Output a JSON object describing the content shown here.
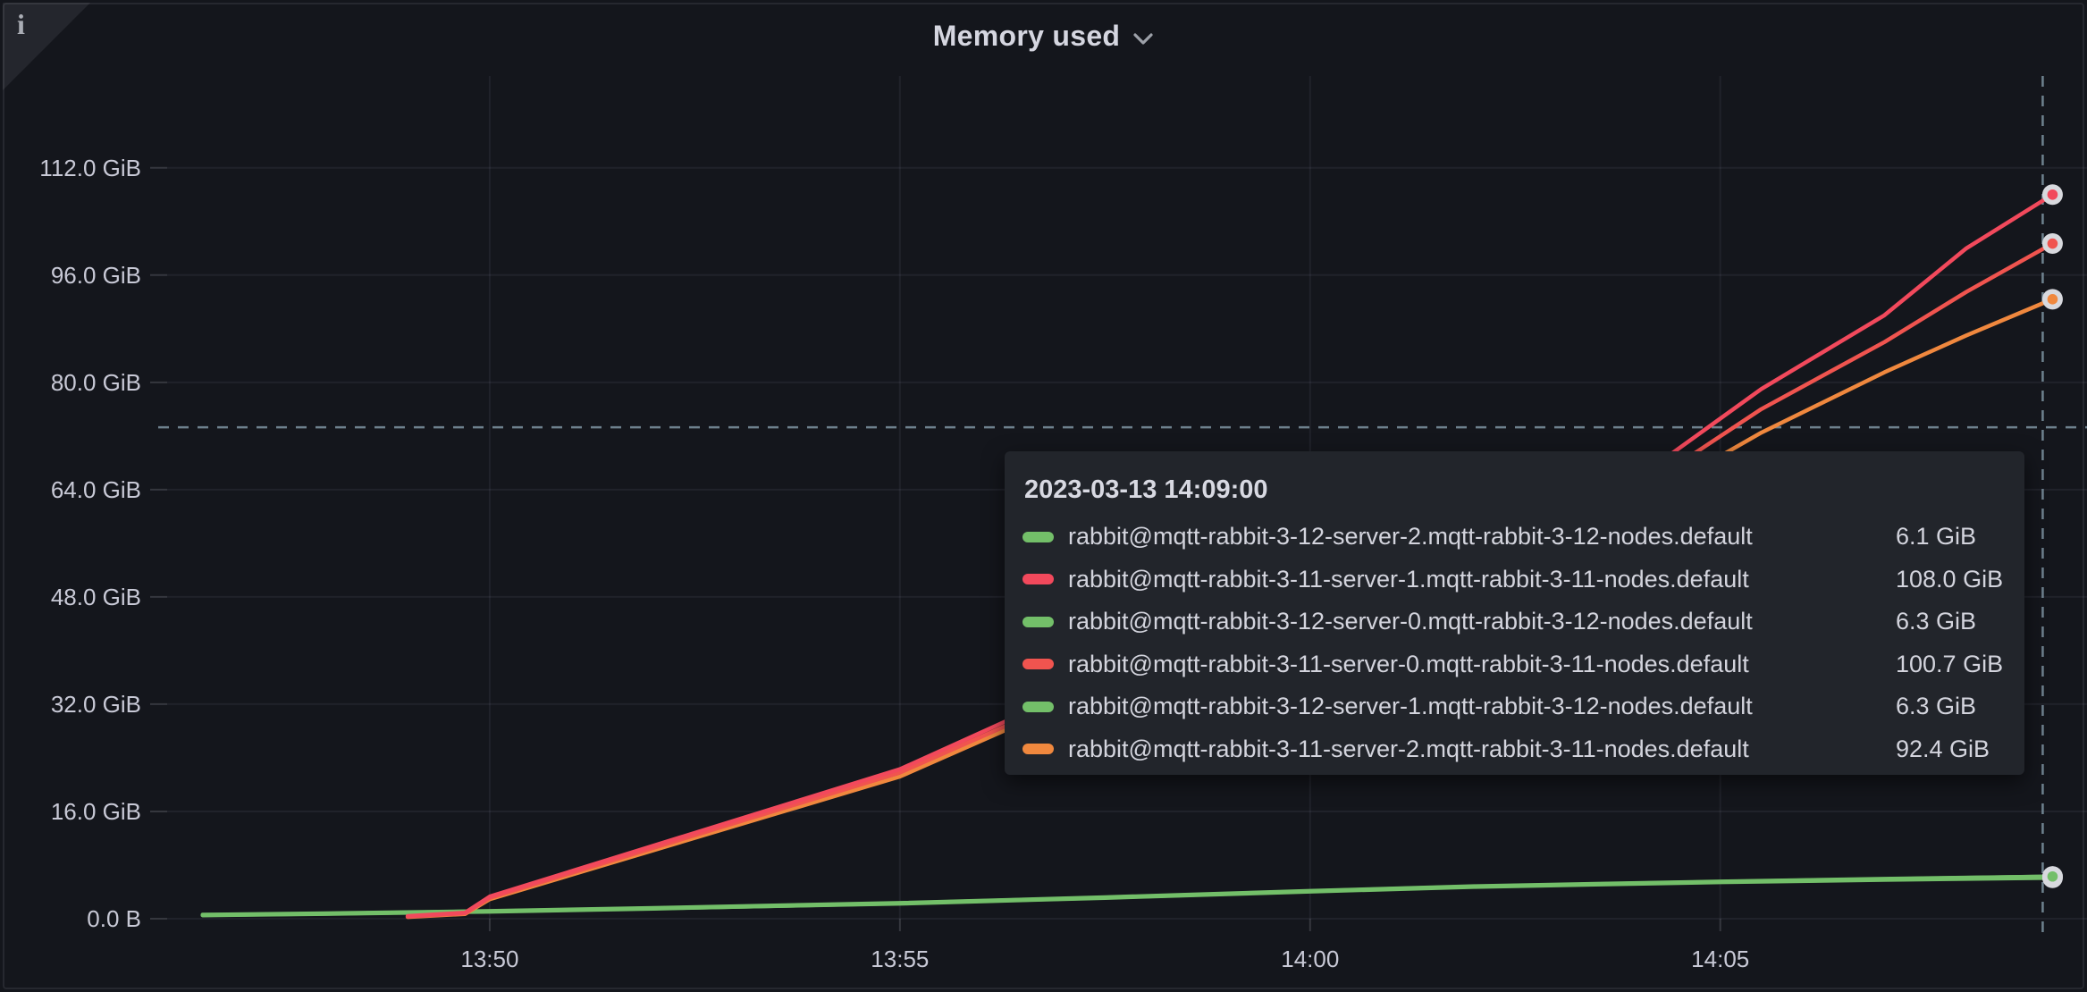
{
  "panel": {
    "title": "Memory used",
    "info_icon": "i"
  },
  "tooltip": {
    "timestamp": "2023-03-13 14:09:00"
  },
  "chart_data": {
    "type": "line",
    "title": "Memory used",
    "unit": "GiB",
    "grid": true,
    "x_axis": {
      "note": "t is minutes after 13:40",
      "lim": [
        6.068,
        29.47
      ],
      "ticks": [
        {
          "t": 10,
          "label": "13:50"
        },
        {
          "t": 15,
          "label": "13:55"
        },
        {
          "t": 20,
          "label": "14:00"
        },
        {
          "t": 25,
          "label": "14:05"
        }
      ]
    },
    "y_axis": {
      "lim": [
        0,
        125.7
      ],
      "ticks": [
        {
          "v": 0,
          "label": "0.0 B"
        },
        {
          "v": 16,
          "label": "16.0 GiB"
        },
        {
          "v": 32,
          "label": "32.0 GiB"
        },
        {
          "v": 48,
          "label": "48.0 GiB"
        },
        {
          "v": 64,
          "label": "64.0 GiB"
        },
        {
          "v": 80,
          "label": "80.0 GiB"
        },
        {
          "v": 96,
          "label": "96.0 GiB"
        },
        {
          "v": 112,
          "label": "112.0 GiB"
        }
      ]
    },
    "crosshair": {
      "t": 28.93,
      "v": 73.3
    },
    "series": [
      {
        "name": "rabbit@mqtt-rabbit-3-12-server-2.mqtt-rabbit-3-12-nodes.default",
        "value_label": "6.1 GiB",
        "value_gib": 6.1,
        "color": "#73BF69",
        "z": 1,
        "points": [
          [
            6.5,
            0.55
          ],
          [
            8,
            0.75
          ],
          [
            10,
            1.1
          ],
          [
            12,
            1.55
          ],
          [
            15,
            2.25
          ],
          [
            17.5,
            3.1
          ],
          [
            20,
            4.05
          ],
          [
            22,
            4.75
          ],
          [
            25,
            5.45
          ],
          [
            27,
            5.8
          ],
          [
            29.05,
            6.1
          ]
        ]
      },
      {
        "name": "rabbit@mqtt-rabbit-3-11-server-1.mqtt-rabbit-3-11-nodes.default",
        "value_label": "108.0 GiB",
        "value_gib": 108.0,
        "color": "#F2495C",
        "z": 6,
        "points": [
          [
            9,
            0.4
          ],
          [
            9.7,
            0.9
          ],
          [
            10,
            3.3
          ],
          [
            15,
            22.3
          ],
          [
            16.3,
            29.5
          ],
          [
            20,
            42.5
          ],
          [
            22.5,
            55
          ],
          [
            24.4,
            69.3
          ],
          [
            25.5,
            79
          ],
          [
            27,
            90
          ],
          [
            28,
            100
          ],
          [
            29.05,
            108
          ]
        ]
      },
      {
        "name": "rabbit@mqtt-rabbit-3-12-server-0.mqtt-rabbit-3-12-nodes.default",
        "value_label": "6.3 GiB",
        "value_gib": 6.3,
        "color": "#73BF69",
        "z": 2,
        "points": [
          [
            6.5,
            0.6
          ],
          [
            8,
            0.8
          ],
          [
            10,
            1.15
          ],
          [
            12,
            1.6
          ],
          [
            15,
            2.35
          ],
          [
            17.5,
            3.2
          ],
          [
            20,
            4.15
          ],
          [
            22,
            4.85
          ],
          [
            25,
            5.55
          ],
          [
            27,
            5.95
          ],
          [
            29.05,
            6.3
          ]
        ]
      },
      {
        "name": "rabbit@mqtt-rabbit-3-11-server-0.mqtt-rabbit-3-11-nodes.default",
        "value_label": "100.7 GiB",
        "value_gib": 100.7,
        "color": "#F0544F",
        "z": 5,
        "points": [
          [
            9,
            0.3
          ],
          [
            9.7,
            0.8
          ],
          [
            10,
            3.1
          ],
          [
            15,
            21.8
          ],
          [
            16.3,
            28.8
          ],
          [
            20,
            41.5
          ],
          [
            22.5,
            53.5
          ],
          [
            24.45,
            67.5
          ],
          [
            25.5,
            76
          ],
          [
            27,
            86
          ],
          [
            28,
            93.5
          ],
          [
            29.05,
            100.7
          ]
        ]
      },
      {
        "name": "rabbit@mqtt-rabbit-3-12-server-1.mqtt-rabbit-3-12-nodes.default",
        "value_label": "6.3 GiB",
        "value_gib": 6.3,
        "color": "#73BF69",
        "z": 3,
        "points": [
          [
            6.5,
            0.5
          ],
          [
            8,
            0.72
          ],
          [
            10,
            1.05
          ],
          [
            12,
            1.5
          ],
          [
            15,
            2.3
          ],
          [
            17.5,
            3.15
          ],
          [
            20,
            4.1
          ],
          [
            22,
            4.8
          ],
          [
            25,
            5.5
          ],
          [
            27,
            5.9
          ],
          [
            29.05,
            6.3
          ]
        ]
      },
      {
        "name": "rabbit@mqtt-rabbit-3-11-server-2.mqtt-rabbit-3-11-nodes.default",
        "value_label": "92.4 GiB",
        "value_gib": 92.4,
        "color": "#F0883E",
        "z": 4,
        "points": [
          [
            9,
            0.25
          ],
          [
            9.7,
            0.7
          ],
          [
            10,
            2.9
          ],
          [
            15,
            21.2
          ],
          [
            16.3,
            28.2
          ],
          [
            20,
            40.5
          ],
          [
            22.5,
            52
          ],
          [
            24.5,
            65.5
          ],
          [
            25.5,
            72.5
          ],
          [
            27,
            81.5
          ],
          [
            28,
            87
          ],
          [
            29.05,
            92.4
          ]
        ]
      }
    ]
  },
  "colors": {
    "background": "#14161c",
    "tooltip_background": "#22252b",
    "gridline": "rgba(204,204,220,0.07)",
    "tick": "rgba(204,204,220,0.18)",
    "crosshair": "#7E94A2",
    "marker_ring": "#D8D9DE"
  }
}
